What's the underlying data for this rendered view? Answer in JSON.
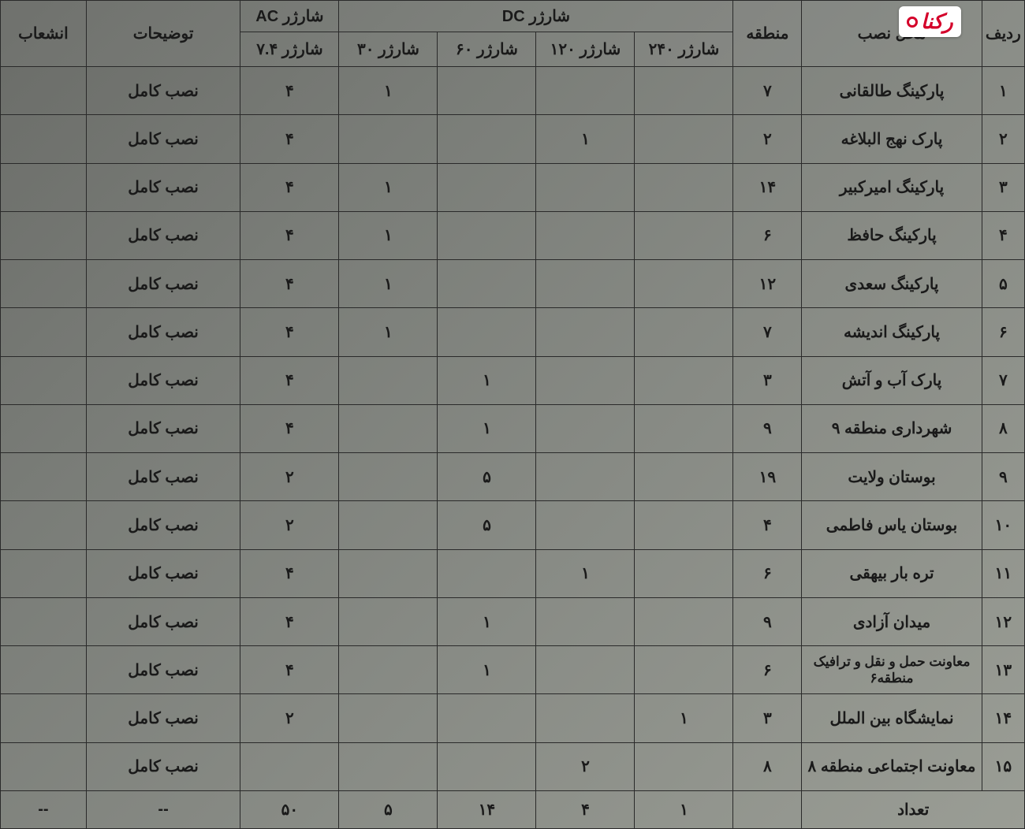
{
  "watermark": {
    "text": "رکنا"
  },
  "headers": {
    "row_idx": "ردیف",
    "location": "محل نصب",
    "region": "منطقه",
    "dc_group": "شارژر DC",
    "ac_group": "شارژر AC",
    "ch_240": "شارژر ۲۴۰",
    "ch_120": "شارژر ۱۲۰",
    "ch_60": "شارژر ۶۰",
    "ch_30": "شارژر ۳۰",
    "ch_7_4": "شارژر ۷.۴",
    "desc": "توضیحات",
    "branch": "انشعاب"
  },
  "rows": [
    {
      "idx": "۱",
      "loc": "پارکینگ طالقانی",
      "reg": "۷",
      "c240": "",
      "c120": "",
      "c60": "",
      "c30": "۱",
      "c74": "۴",
      "desc": "نصب کامل",
      "bran": ""
    },
    {
      "idx": "۲",
      "loc": "پارک نهج البلاغه",
      "reg": "۲",
      "c240": "",
      "c120": "۱",
      "c60": "",
      "c30": "",
      "c74": "۴",
      "desc": "نصب کامل",
      "bran": ""
    },
    {
      "idx": "۳",
      "loc": "پارکینگ امیرکبیر",
      "reg": "۱۴",
      "c240": "",
      "c120": "",
      "c60": "",
      "c30": "۱",
      "c74": "۴",
      "desc": "نصب کامل",
      "bran": ""
    },
    {
      "idx": "۴",
      "loc": "پارکینگ حافظ",
      "reg": "۶",
      "c240": "",
      "c120": "",
      "c60": "",
      "c30": "۱",
      "c74": "۴",
      "desc": "نصب کامل",
      "bran": ""
    },
    {
      "idx": "۵",
      "loc": "پارکینگ سعدی",
      "reg": "۱۲",
      "c240": "",
      "c120": "",
      "c60": "",
      "c30": "۱",
      "c74": "۴",
      "desc": "نصب کامل",
      "bran": ""
    },
    {
      "idx": "۶",
      "loc": "پارکینگ اندیشه",
      "reg": "۷",
      "c240": "",
      "c120": "",
      "c60": "",
      "c30": "۱",
      "c74": "۴",
      "desc": "نصب کامل",
      "bran": ""
    },
    {
      "idx": "۷",
      "loc": "پارک آب و آتش",
      "reg": "۳",
      "c240": "",
      "c120": "",
      "c60": "۱",
      "c30": "",
      "c74": "۴",
      "desc": "نصب کامل",
      "bran": ""
    },
    {
      "idx": "۸",
      "loc": "شهرداری منطقه ۹",
      "reg": "۹",
      "c240": "",
      "c120": "",
      "c60": "۱",
      "c30": "",
      "c74": "۴",
      "desc": "نصب کامل",
      "bran": ""
    },
    {
      "idx": "۹",
      "loc": "بوستان ولایت",
      "reg": "۱۹",
      "c240": "",
      "c120": "",
      "c60": "۵",
      "c30": "",
      "c74": "۲",
      "desc": "نصب کامل",
      "bran": ""
    },
    {
      "idx": "۱۰",
      "loc": "بوستان یاس فاطمی",
      "reg": "۴",
      "c240": "",
      "c120": "",
      "c60": "۵",
      "c30": "",
      "c74": "۲",
      "desc": "نصب کامل",
      "bran": ""
    },
    {
      "idx": "۱۱",
      "loc": "تره بار بیهقی",
      "reg": "۶",
      "c240": "",
      "c120": "۱",
      "c60": "",
      "c30": "",
      "c74": "۴",
      "desc": "نصب کامل",
      "bran": ""
    },
    {
      "idx": "۱۲",
      "loc": "میدان آزادی",
      "reg": "۹",
      "c240": "",
      "c120": "",
      "c60": "۱",
      "c30": "",
      "c74": "۴",
      "desc": "نصب کامل",
      "bran": ""
    },
    {
      "idx": "۱۳",
      "loc": "معاونت حمل و نقل و ترافیک منطقه۶",
      "reg": "۶",
      "c240": "",
      "c120": "",
      "c60": "۱",
      "c30": "",
      "c74": "۴",
      "desc": "نصب کامل",
      "bran": ""
    },
    {
      "idx": "۱۴",
      "loc": "نمایشگاه بین الملل",
      "reg": "۳",
      "c240": "۱",
      "c120": "",
      "c60": "",
      "c30": "",
      "c74": "۲",
      "desc": "نصب کامل",
      "bran": ""
    },
    {
      "idx": "۱۵",
      "loc": "معاونت اجتماعی منطقه ۸",
      "reg": "۸",
      "c240": "",
      "c120": "۲",
      "c60": "",
      "c30": "",
      "c74": "",
      "desc": "نصب کامل",
      "bran": ""
    }
  ],
  "totals": {
    "label": "تعداد",
    "c240": "۱",
    "c120": "۴",
    "c60": "۱۴",
    "c30": "۵",
    "c74": "۵۰",
    "desc": "--",
    "bran": "--"
  },
  "style": {
    "border_color": "#2a2a2a",
    "text_color": "#1a1a1a",
    "bg_gradient_start": "#6a6c68",
    "bg_gradient_end": "#9a9d95",
    "watermark_color": "#d4002a",
    "font_size_cell": 20,
    "font_size_header": 20
  }
}
